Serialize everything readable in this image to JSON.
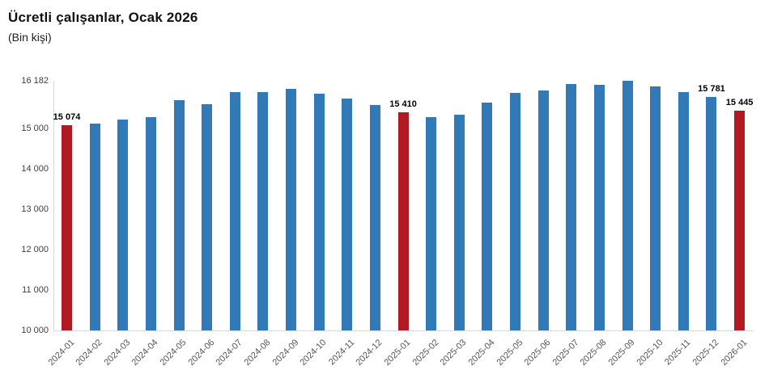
{
  "title": "Ücretli çalışanlar, Ocak 2026",
  "subtitle": "(Bin kişi)",
  "chart_data": {
    "type": "bar",
    "title": "Ücretli çalışanlar, Ocak 2026",
    "subtitle": "(Bin kişi)",
    "xlabel": "",
    "ylabel": "",
    "ylim": [
      10000,
      16182
    ],
    "grid": false,
    "legend": false,
    "categories": [
      "2024-01",
      "2024-02",
      "2024-03",
      "2024-04",
      "2024-05",
      "2024-06",
      "2024-07",
      "2024-08",
      "2024-09",
      "2024-10",
      "2024-11",
      "2024-12",
      "2025-01",
      "2025-02",
      "2025-03",
      "2025-04",
      "2025-05",
      "2025-06",
      "2025-07",
      "2025-08",
      "2025-09",
      "2025-10",
      "2025-11",
      "2025-12",
      "2026-01"
    ],
    "values": [
      15074,
      15120,
      15230,
      15290,
      15700,
      15610,
      15905,
      15900,
      15990,
      15870,
      15735,
      15575,
      15410,
      15290,
      15340,
      15640,
      15890,
      15935,
      16105,
      16085,
      16182,
      16035,
      15910,
      15781,
      15445
    ],
    "highlight_indices": [
      0,
      12,
      24
    ],
    "labeled_points": [
      {
        "index": 0,
        "label": "15 074"
      },
      {
        "index": 12,
        "label": "15 410"
      },
      {
        "index": 23,
        "label": "15 781"
      },
      {
        "index": 24,
        "label": "15 445"
      }
    ],
    "yticks": [
      10000,
      11000,
      12000,
      13000,
      14000,
      15000,
      16182
    ],
    "ytick_labels": [
      "10 000",
      "11 000",
      "12 000",
      "13 000",
      "14 000",
      "15 000",
      "16 182"
    ],
    "colors": {
      "bar": "#3279b7",
      "highlight": "#b01b21",
      "axis_line": "#d9d9d9",
      "ytick_text": "#404040",
      "xtick_text": "#555555",
      "data_label_text": "#000000",
      "title_text": "#111111"
    }
  }
}
